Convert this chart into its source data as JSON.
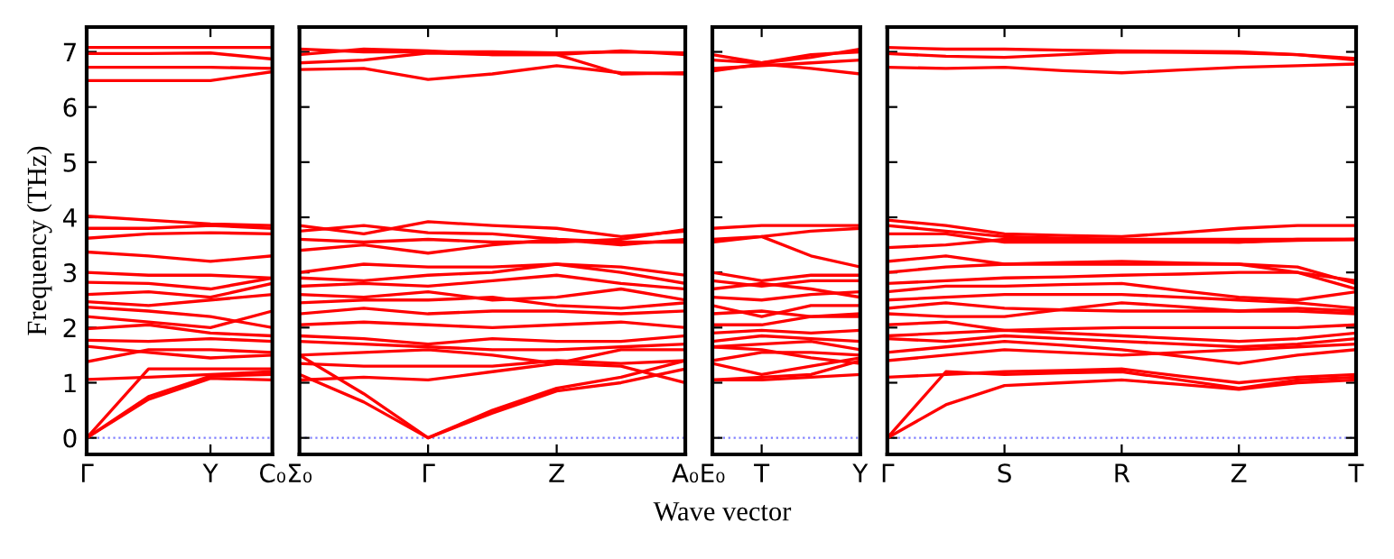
{
  "chart_data": [
    {
      "type": "line",
      "ylabel": "Frequency (THz)",
      "categories": [
        "Γ",
        null,
        "Y",
        "C₀"
      ],
      "ylim": [
        -0.3,
        7.45
      ],
      "yticks": [
        0,
        1,
        2,
        3,
        4,
        5,
        6,
        7
      ],
      "ref_lines": [
        {
          "axis": "y",
          "value": 0,
          "color": "#8080ff",
          "line_style": "dotted"
        }
      ],
      "series": [
        {
          "color": "#ff0000",
          "values": [
            7.08,
            7.08,
            7.08,
            7.08
          ]
        },
        {
          "color": "#ff0000",
          "values": [
            6.97,
            6.97,
            6.98,
            6.87
          ]
        },
        {
          "color": "#ff0000",
          "values": [
            6.72,
            6.72,
            6.72,
            6.7
          ]
        },
        {
          "color": "#ff0000",
          "values": [
            6.48,
            6.48,
            6.48,
            6.64
          ]
        },
        {
          "color": "#ff0000",
          "values": [
            4.02,
            3.95,
            3.88,
            3.85
          ]
        },
        {
          "color": "#ff0000",
          "values": [
            3.8,
            3.8,
            3.85,
            3.8
          ]
        },
        {
          "color": "#ff0000",
          "values": [
            3.62,
            3.7,
            3.72,
            3.7
          ]
        },
        {
          "color": "#ff0000",
          "values": [
            3.37,
            3.3,
            3.2,
            3.3
          ]
        },
        {
          "color": "#ff0000",
          "values": [
            3.0,
            2.95,
            2.95,
            2.9
          ]
        },
        {
          "color": "#ff0000",
          "values": [
            2.82,
            2.8,
            2.7,
            2.9
          ]
        },
        {
          "color": "#ff0000",
          "values": [
            2.6,
            2.65,
            2.55,
            2.8
          ]
        },
        {
          "color": "#ff0000",
          "values": [
            2.47,
            2.4,
            2.5,
            2.6
          ]
        },
        {
          "color": "#ff0000",
          "values": [
            2.37,
            2.3,
            2.2,
            2.0
          ]
        },
        {
          "color": "#ff0000",
          "values": [
            2.2,
            2.1,
            2.0,
            2.3
          ]
        },
        {
          "color": "#ff0000",
          "values": [
            1.98,
            2.05,
            1.9,
            1.85
          ]
        },
        {
          "color": "#ff0000",
          "values": [
            1.77,
            1.75,
            1.8,
            1.75
          ]
        },
        {
          "color": "#ff0000",
          "values": [
            1.66,
            1.55,
            1.45,
            1.5
          ]
        },
        {
          "color": "#ff0000",
          "values": [
            1.38,
            1.6,
            1.6,
            1.55
          ]
        },
        {
          "color": "#ff0000",
          "values": [
            1.06,
            1.1,
            1.15,
            1.2
          ]
        },
        {
          "color": "#ff0000",
          "values": [
            0,
            1.25,
            1.25,
            1.25
          ]
        },
        {
          "color": "#ff0000",
          "values": [
            0,
            0.75,
            1.12,
            1.15
          ]
        },
        {
          "color": "#ff0000",
          "values": [
            0,
            0.7,
            1.08,
            1.05
          ]
        }
      ]
    },
    {
      "type": "line",
      "tick_labels": "x",
      "categories": [
        "Σ₀",
        null,
        "Γ",
        null,
        "Z",
        null,
        "A₀"
      ],
      "ylim": [
        -0.3,
        7.45
      ],
      "ref_lines": [
        {
          "axis": "y",
          "value": 0,
          "color": "#8080ff",
          "line_style": "dotted"
        }
      ],
      "series": [
        {
          "color": "#ff0000",
          "values": [
            7.05,
            7.0,
            7.0,
            7.0,
            6.98,
            7.0,
            6.98
          ]
        },
        {
          "color": "#ff0000",
          "values": [
            6.95,
            7.05,
            7.02,
            6.95,
            6.95,
            7.02,
            6.95
          ]
        },
        {
          "color": "#ff0000",
          "values": [
            6.8,
            6.85,
            6.98,
            6.95,
            6.95,
            6.6,
            6.62
          ]
        },
        {
          "color": "#ff0000",
          "values": [
            6.68,
            6.7,
            6.5,
            6.6,
            6.75,
            6.62,
            6.6
          ]
        },
        {
          "color": "#ff0000",
          "values": [
            3.85,
            3.7,
            3.92,
            3.85,
            3.8,
            3.65,
            3.75
          ]
        },
        {
          "color": "#ff0000",
          "values": [
            3.75,
            3.85,
            3.72,
            3.7,
            3.6,
            3.55,
            3.55
          ]
        },
        {
          "color": "#ff0000",
          "values": [
            3.6,
            3.55,
            3.6,
            3.55,
            3.55,
            3.6,
            3.78
          ]
        },
        {
          "color": "#ff0000",
          "values": [
            3.4,
            3.5,
            3.35,
            3.5,
            3.6,
            3.5,
            3.6
          ]
        },
        {
          "color": "#ff0000",
          "values": [
            3.0,
            3.15,
            3.1,
            3.1,
            3.15,
            3.1,
            2.95
          ]
        },
        {
          "color": "#ff0000",
          "values": [
            2.9,
            2.85,
            2.95,
            3.0,
            3.15,
            3.0,
            2.8
          ]
        },
        {
          "color": "#ff0000",
          "values": [
            2.75,
            2.8,
            2.75,
            2.85,
            2.95,
            2.8,
            2.7
          ]
        },
        {
          "color": "#ff0000",
          "values": [
            2.6,
            2.55,
            2.65,
            2.5,
            2.55,
            2.7,
            2.5
          ]
        },
        {
          "color": "#ff0000",
          "values": [
            2.45,
            2.5,
            2.5,
            2.55,
            2.4,
            2.35,
            2.45
          ]
        },
        {
          "color": "#ff0000",
          "values": [
            2.25,
            2.35,
            2.25,
            2.3,
            2.3,
            2.25,
            2.3
          ]
        },
        {
          "color": "#ff0000",
          "values": [
            2.05,
            2.1,
            2.05,
            2.0,
            2.05,
            2.1,
            2.0
          ]
        },
        {
          "color": "#ff0000",
          "values": [
            1.85,
            1.8,
            1.7,
            1.8,
            1.75,
            1.75,
            1.85
          ]
        },
        {
          "color": "#ff0000",
          "values": [
            1.75,
            1.7,
            1.65,
            1.6,
            1.6,
            1.65,
            1.7
          ]
        },
        {
          "color": "#ff0000",
          "values": [
            1.5,
            1.55,
            1.6,
            1.5,
            1.35,
            1.6,
            1.6
          ]
        },
        {
          "color": "#ff0000",
          "values": [
            1.35,
            1.3,
            1.3,
            1.3,
            1.4,
            1.35,
            1.4
          ]
        },
        {
          "color": "#ff0000",
          "values": [
            1.05,
            1.1,
            1.05,
            1.2,
            1.35,
            1.3,
            1.0
          ]
        },
        {
          "color": "#ff0000",
          "values": [
            1.5,
            0.8,
            0,
            0.5,
            0.9,
            1.1,
            1.4
          ]
        },
        {
          "color": "#ff0000",
          "values": [
            1.15,
            0.65,
            0,
            0.45,
            0.85,
            1.0,
            1.25
          ]
        }
      ]
    },
    {
      "type": "line",
      "tick_labels": "x",
      "xlabel": "Wave vector",
      "categories": [
        "E₀",
        "T",
        null,
        "Y"
      ],
      "ylim": [
        -0.3,
        7.45
      ],
      "ref_lines": [
        {
          "axis": "y",
          "value": 0,
          "color": "#8080ff",
          "line_style": "dotted"
        }
      ],
      "series": [
        {
          "color": "#ff0000",
          "values": [
            6.95,
            6.8,
            6.9,
            7.05
          ]
        },
        {
          "color": "#ff0000",
          "values": [
            6.85,
            6.8,
            6.95,
            7.0
          ]
        },
        {
          "color": "#ff0000",
          "values": [
            6.7,
            6.75,
            6.8,
            6.85
          ]
        },
        {
          "color": "#ff0000",
          "values": [
            6.65,
            6.78,
            6.7,
            6.6
          ]
        },
        {
          "color": "#ff0000",
          "values": [
            3.8,
            3.85,
            3.85,
            3.85
          ]
        },
        {
          "color": "#ff0000",
          "values": [
            3.6,
            3.65,
            3.75,
            3.8
          ]
        },
        {
          "color": "#ff0000",
          "values": [
            3.55,
            3.65,
            3.3,
            3.1
          ]
        },
        {
          "color": "#ff0000",
          "values": [
            3.0,
            2.85,
            2.95,
            2.95
          ]
        },
        {
          "color": "#ff0000",
          "values": [
            2.85,
            2.75,
            2.85,
            2.85
          ]
        },
        {
          "color": "#ff0000",
          "values": [
            2.7,
            2.8,
            2.7,
            2.55
          ]
        },
        {
          "color": "#ff0000",
          "values": [
            2.55,
            2.5,
            2.6,
            2.65
          ]
        },
        {
          "color": "#ff0000",
          "values": [
            2.4,
            2.2,
            2.4,
            2.4
          ]
        },
        {
          "color": "#ff0000",
          "values": [
            2.25,
            2.3,
            2.2,
            2.25
          ]
        },
        {
          "color": "#ff0000",
          "values": [
            2.05,
            2.05,
            2.2,
            2.2
          ]
        },
        {
          "color": "#ff0000",
          "values": [
            1.9,
            1.95,
            1.9,
            1.95
          ]
        },
        {
          "color": "#ff0000",
          "values": [
            1.75,
            1.85,
            1.8,
            1.75
          ]
        },
        {
          "color": "#ff0000",
          "values": [
            1.65,
            1.7,
            1.75,
            1.6
          ]
        },
        {
          "color": "#ff0000",
          "values": [
            1.4,
            1.55,
            1.55,
            1.5
          ]
        },
        {
          "color": "#ff0000",
          "values": [
            1.65,
            1.6,
            1.45,
            1.35
          ]
        },
        {
          "color": "#ff0000",
          "values": [
            1.35,
            1.15,
            1.3,
            1.45
          ]
        },
        {
          "color": "#ff0000",
          "values": [
            1.05,
            1.1,
            1.15,
            1.4
          ]
        },
        {
          "color": "#ff0000",
          "values": [
            1.05,
            1.05,
            1.1,
            1.15
          ]
        }
      ]
    },
    {
      "type": "line",
      "tick_labels": "x",
      "categories": [
        "Γ",
        null,
        "S",
        null,
        "R",
        null,
        "Z",
        null,
        "T"
      ],
      "ylim": [
        -0.3,
        7.45
      ],
      "ref_lines": [
        {
          "axis": "y",
          "value": 0,
          "color": "#8080ff",
          "line_style": "dotted"
        }
      ],
      "series": [
        {
          "color": "#ff0000",
          "values": [
            7.08,
            7.05,
            7.05,
            7.03,
            7.02,
            7.01,
            7.0,
            6.95,
            6.85
          ]
        },
        {
          "color": "#ff0000",
          "values": [
            6.97,
            6.92,
            6.9,
            6.95,
            7.0,
            6.99,
            6.98,
            6.95,
            6.88
          ]
        },
        {
          "color": "#ff0000",
          "values": [
            6.72,
            6.7,
            6.72,
            6.66,
            6.62,
            6.67,
            6.72,
            6.75,
            6.78
          ]
        },
        {
          "color": "#ff0000",
          "values": [
            3.95,
            3.85,
            3.7,
            3.67,
            3.65,
            3.72,
            3.8,
            3.85,
            3.85
          ]
        },
        {
          "color": "#ff0000",
          "values": [
            3.85,
            3.75,
            3.65,
            3.62,
            3.6,
            3.6,
            3.6,
            3.6,
            3.6
          ]
        },
        {
          "color": "#ff0000",
          "values": [
            3.7,
            3.7,
            3.55,
            3.55,
            3.55,
            3.55,
            3.55,
            3.58,
            3.6
          ]
        },
        {
          "color": "#ff0000",
          "values": [
            3.45,
            3.5,
            3.6,
            3.6,
            3.6,
            3.57,
            3.55,
            3.6,
            3.6
          ]
        },
        {
          "color": "#ff0000",
          "values": [
            3.2,
            3.3,
            3.15,
            3.18,
            3.2,
            3.17,
            3.15,
            3.0,
            2.85
          ]
        },
        {
          "color": "#ff0000",
          "values": [
            3.0,
            3.1,
            3.15,
            3.15,
            3.15,
            3.15,
            3.15,
            3.1,
            2.8
          ]
        },
        {
          "color": "#ff0000",
          "values": [
            2.8,
            2.85,
            2.9,
            2.92,
            2.95,
            2.97,
            3.0,
            3.0,
            2.7
          ]
        },
        {
          "color": "#ff0000",
          "values": [
            2.65,
            2.75,
            2.75,
            2.78,
            2.8,
            2.67,
            2.55,
            2.5,
            2.65
          ]
        },
        {
          "color": "#ff0000",
          "values": [
            2.5,
            2.55,
            2.6,
            2.6,
            2.6,
            2.55,
            2.5,
            2.45,
            2.35
          ]
        },
        {
          "color": "#ff0000",
          "values": [
            2.35,
            2.45,
            2.35,
            2.32,
            2.3,
            2.3,
            2.3,
            2.35,
            2.3
          ]
        },
        {
          "color": "#ff0000",
          "values": [
            2.25,
            2.2,
            2.2,
            2.33,
            2.45,
            2.38,
            2.3,
            2.3,
            2.25
          ]
        },
        {
          "color": "#ff0000",
          "values": [
            2.05,
            2.1,
            1.95,
            1.98,
            2.0,
            2.0,
            2.0,
            2.0,
            2.05
          ]
        },
        {
          "color": "#ff0000",
          "values": [
            1.85,
            1.9,
            1.95,
            1.9,
            1.85,
            1.8,
            1.75,
            1.8,
            1.9
          ]
        },
        {
          "color": "#ff0000",
          "values": [
            1.8,
            1.75,
            1.85,
            1.8,
            1.75,
            1.7,
            1.65,
            1.7,
            1.8
          ]
        },
        {
          "color": "#ff0000",
          "values": [
            1.55,
            1.65,
            1.75,
            1.68,
            1.6,
            1.48,
            1.35,
            1.5,
            1.6
          ]
        },
        {
          "color": "#ff0000",
          "values": [
            1.4,
            1.5,
            1.6,
            1.55,
            1.5,
            1.55,
            1.6,
            1.65,
            1.7
          ]
        },
        {
          "color": "#ff0000",
          "values": [
            1.1,
            1.15,
            1.2,
            1.22,
            1.25,
            1.12,
            1.0,
            1.1,
            1.15
          ]
        },
        {
          "color": "#ff0000",
          "values": [
            0,
            1.2,
            1.15,
            1.18,
            1.2,
            1.05,
            0.9,
            1.05,
            1.1
          ]
        },
        {
          "color": "#ff0000",
          "values": [
            0,
            0.6,
            0.95,
            1.0,
            1.05,
            0.97,
            0.88,
            1.0,
            1.05
          ]
        }
      ]
    }
  ]
}
